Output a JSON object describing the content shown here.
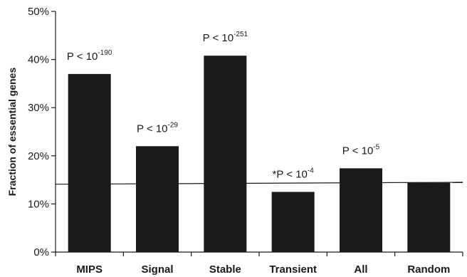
{
  "chart_data": {
    "type": "bar",
    "title": "",
    "xlabel": "",
    "ylabel": "Fraction of essential genes",
    "ylim": [
      0,
      50
    ],
    "yticks": [
      0,
      10,
      20,
      30,
      40,
      50
    ],
    "ytick_labels": [
      "0%",
      "10%",
      "20%",
      "30%",
      "40%",
      "50%"
    ],
    "categories": [
      "MIPS",
      "Signal",
      "Stable",
      "Transient",
      "All",
      "Random"
    ],
    "values": [
      37.0,
      22.0,
      40.8,
      12.5,
      17.4,
      14.4
    ],
    "annotations": [
      {
        "prefix": "P < 10",
        "exponent": "-190"
      },
      {
        "prefix": "P < 10",
        "exponent": "-29"
      },
      {
        "prefix": "P < 10",
        "exponent": "-251"
      },
      {
        "prefix": "*P < 10",
        "exponent": "-4"
      },
      {
        "prefix": "P < 10",
        "exponent": "-5"
      },
      null
    ],
    "reference_line": {
      "y_start": 14.1,
      "y_end": 14.5
    },
    "bar_color": "#1a1a1a",
    "axis_color": "#1a1a1a",
    "grid": false,
    "legend": "none"
  }
}
